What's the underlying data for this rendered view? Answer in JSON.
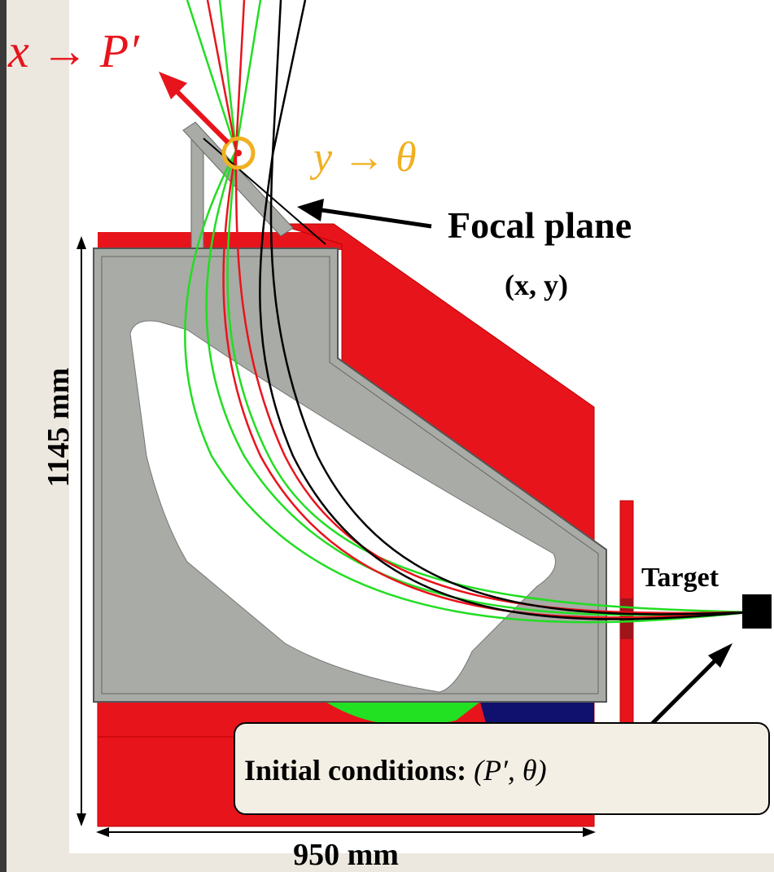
{
  "labels": {
    "x_axis_map": "x → P′",
    "y_axis_map": "y → θ",
    "focal_plane": "Focal plane",
    "focal_coords": "(x, y)",
    "height": "1145 mm",
    "width": "950 mm",
    "target": "Target",
    "initial_conditions": "Initial conditions:",
    "initial_coords": "(P′, θ)"
  }
}
